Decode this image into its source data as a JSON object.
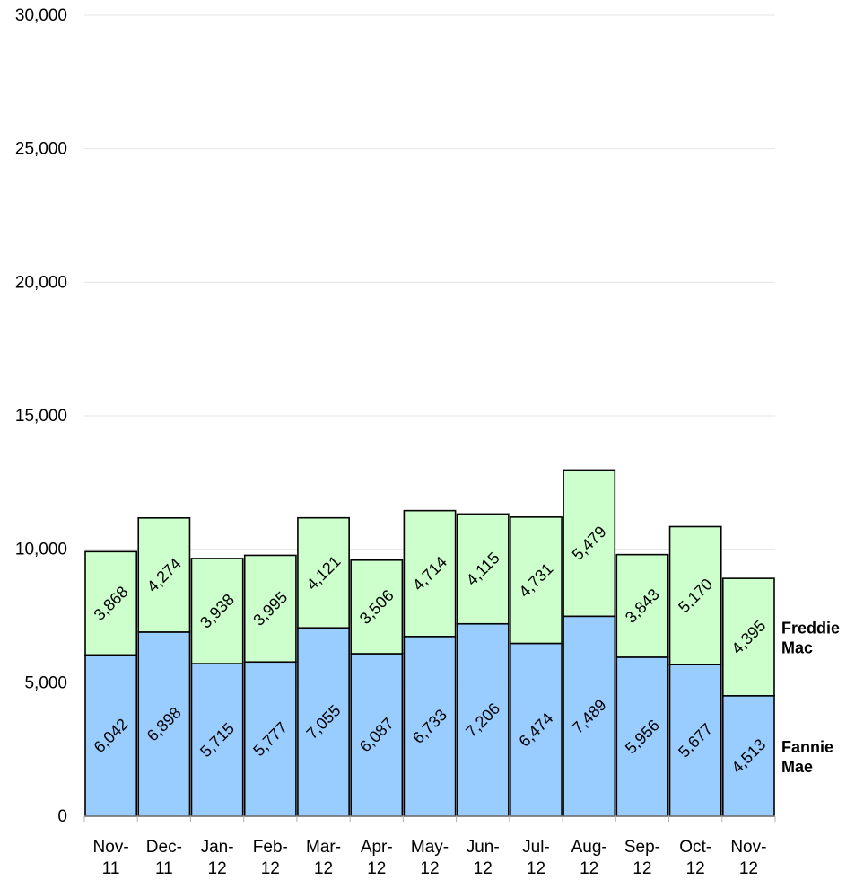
{
  "chart_data": {
    "type": "bar",
    "stacked": true,
    "categories": [
      [
        "Nov-",
        "11"
      ],
      [
        "Dec-",
        "11"
      ],
      [
        "Jan-",
        "12"
      ],
      [
        "Feb-",
        "12"
      ],
      [
        "Mar-",
        "12"
      ],
      [
        "Apr-",
        "12"
      ],
      [
        "May-",
        "12"
      ],
      [
        "Jun-",
        "12"
      ],
      [
        "Jul-",
        "12"
      ],
      [
        "Aug-",
        "12"
      ],
      [
        "Sep-",
        "12"
      ],
      [
        "Oct-",
        "12"
      ],
      [
        "Nov-",
        "12"
      ]
    ],
    "series": [
      {
        "name": "Fannie Mae",
        "label_lines": [
          "Fannie",
          "Mae"
        ],
        "color": "#99ccff",
        "values": [
          6042,
          6898,
          5715,
          5777,
          7055,
          6087,
          6733,
          7206,
          6474,
          7489,
          5956,
          5677,
          4513
        ],
        "labels": [
          "6,042",
          "6,898",
          "5,715",
          "5,777",
          "7,055",
          "6,087",
          "6,733",
          "7,206",
          "6,474",
          "7,489",
          "5,956",
          "5,677",
          "4,513"
        ]
      },
      {
        "name": "Freddie Mac",
        "label_lines": [
          "Freddie",
          "Mac"
        ],
        "color": "#ccffcc",
        "values": [
          3868,
          4274,
          3938,
          3995,
          4121,
          3506,
          4714,
          4115,
          4731,
          5479,
          3843,
          5170,
          4395
        ],
        "labels": [
          "3,868",
          "4,274",
          "3,938",
          "3,995",
          "4,121",
          "3,506",
          "4,714",
          "4,115",
          "4,731",
          "5,479",
          "3,843",
          "5,170",
          "4,395"
        ]
      }
    ],
    "ylim": [
      0,
      30000
    ],
    "yticks": [
      0,
      5000,
      10000,
      15000,
      20000,
      25000,
      30000
    ],
    "ytick_labels": [
      "0",
      "5,000",
      "10,000",
      "15,000",
      "20,000",
      "25,000",
      "30,000"
    ],
    "grid": true,
    "title": "",
    "xlabel": "",
    "ylabel": ""
  }
}
